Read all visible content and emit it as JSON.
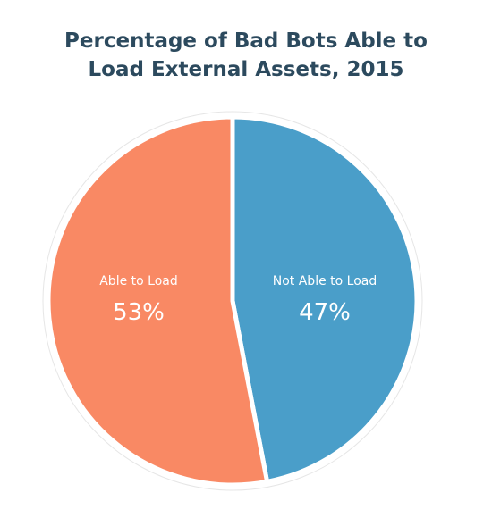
{
  "chart_data": {
    "type": "pie",
    "title_lines": [
      "Percentage of Bad Bots Able to",
      "Load External Assets, 2015"
    ],
    "slices": [
      {
        "label": "Not Able to Load",
        "value": 47,
        "value_label": "47%",
        "color": "#4a9ec9"
      },
      {
        "label": "Able to Load",
        "value": 53,
        "value_label": "53%",
        "color": "#f98964"
      }
    ],
    "legend": "none",
    "separator_color": "#ffffff",
    "outline_color": "#e6e6e6"
  }
}
